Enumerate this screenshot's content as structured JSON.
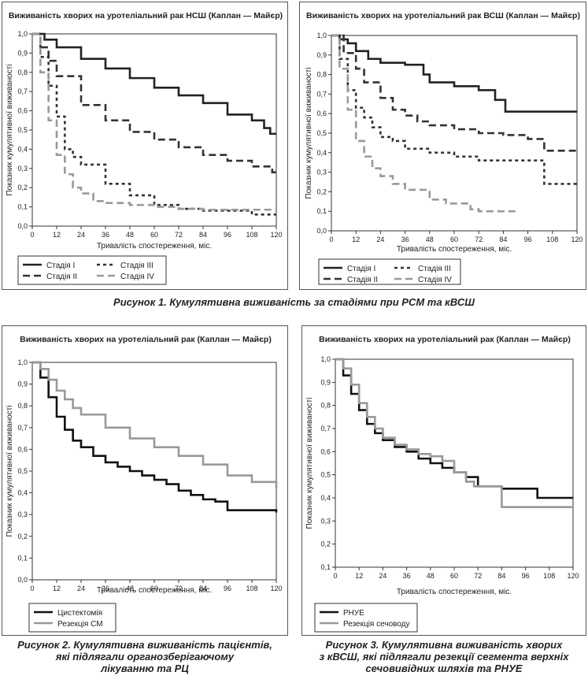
{
  "captions": {
    "fig1": "Рисунок 1. Кумулятивна виживаність за стадіями при РСМ та кВСШ",
    "fig2_lines": [
      "Рисунок 2. Кумулятивна виживаність пацієнтів,",
      "які підлягали органозберігаючому",
      "лікуванню та РЦ"
    ],
    "fig3_lines": [
      "Рисунок 3. Кумулятивна виживаність хворих",
      "з кВСШ, які підлягали резекції сегмента верхніх",
      "сечовивідних шляхів та РНУЕ"
    ]
  },
  "chart_data": [
    {
      "id": "nssh",
      "type": "line",
      "title": "Виживаність хворих на уротеліальний рак НСШ (Каплан — Майєр)",
      "xlabel": "Тривалість спостереження, міс.",
      "ylabel": "Показник кумулятивної виживаності",
      "xlim": [
        0,
        120
      ],
      "ylim": [
        0,
        1.0
      ],
      "xticks": [
        "0",
        "12",
        "24",
        "36",
        "48",
        "60",
        "72",
        "84",
        "96",
        "108",
        "120"
      ],
      "yticks": [
        "0,0",
        "0,1",
        "0,2",
        "0,3",
        "0,4",
        "0,5",
        "0,6",
        "0,7",
        "0,8",
        "0,9",
        "1,0"
      ],
      "legend_position": "bottom-left",
      "series": [
        {
          "name": "Стадія І",
          "style": "solid",
          "color": "#222222",
          "x": [
            0,
            6,
            12,
            24,
            36,
            48,
            60,
            72,
            84,
            96,
            108,
            114,
            117,
            120
          ],
          "y": [
            1.0,
            0.97,
            0.93,
            0.87,
            0.82,
            0.77,
            0.72,
            0.68,
            0.64,
            0.58,
            0.55,
            0.51,
            0.48,
            0.48
          ]
        },
        {
          "name": "Стадія ІІ",
          "style": "dash",
          "color": "#333333",
          "x": [
            0,
            4,
            8,
            12,
            24,
            36,
            48,
            60,
            72,
            84,
            96,
            108,
            118,
            120
          ],
          "y": [
            1.0,
            0.93,
            0.86,
            0.78,
            0.63,
            0.55,
            0.49,
            0.45,
            0.41,
            0.37,
            0.34,
            0.31,
            0.28,
            0.28
          ]
        },
        {
          "name": "Стадія ІІІ",
          "style": "shortdash",
          "color": "#333333",
          "x": [
            0,
            4,
            8,
            12,
            16,
            20,
            24,
            36,
            48,
            60,
            72,
            84,
            96,
            108,
            120
          ],
          "y": [
            1.0,
            0.88,
            0.73,
            0.57,
            0.4,
            0.36,
            0.32,
            0.22,
            0.16,
            0.11,
            0.09,
            0.08,
            0.08,
            0.06,
            0.06
          ]
        },
        {
          "name": "Стадія IV",
          "style": "dash",
          "color": "#999999",
          "x": [
            0,
            4,
            8,
            12,
            16,
            20,
            24,
            30,
            36,
            48,
            60,
            72,
            84,
            96,
            108,
            120
          ],
          "y": [
            1.0,
            0.8,
            0.55,
            0.37,
            0.27,
            0.2,
            0.17,
            0.13,
            0.12,
            0.11,
            0.1,
            0.09,
            0.085,
            0.085,
            0.085,
            0.085
          ]
        }
      ]
    },
    {
      "id": "vssh",
      "type": "line",
      "title": "Виживаність хворих на уротеліальний рак ВСШ (Каплан — Майєр)",
      "xlabel": "Тривалість спостереження, міс.",
      "ylabel": "Показник кумулятивної виживаності",
      "xlim": [
        0,
        120
      ],
      "ylim": [
        0,
        1.0
      ],
      "xticks": [
        "0",
        "12",
        "24",
        "36",
        "48",
        "60",
        "72",
        "84",
        "96",
        "108",
        "120"
      ],
      "yticks": [
        "0,0",
        "0,1",
        "0,2",
        "0,3",
        "0,4",
        "0,5",
        "0,6",
        "0,7",
        "0,8",
        "0,9",
        "1,0"
      ],
      "legend_position": "bottom-left",
      "series": [
        {
          "name": "Стадія І",
          "style": "solid",
          "color": "#222222",
          "x": [
            0,
            4,
            8,
            12,
            18,
            24,
            36,
            45,
            48,
            60,
            72,
            80,
            85,
            100,
            120
          ],
          "y": [
            1.0,
            0.98,
            0.96,
            0.92,
            0.88,
            0.86,
            0.85,
            0.8,
            0.76,
            0.74,
            0.72,
            0.67,
            0.61,
            0.61,
            0.61
          ]
        },
        {
          "name": "Стадія ІІ",
          "style": "dash",
          "color": "#333333",
          "x": [
            0,
            6,
            12,
            16,
            24,
            30,
            36,
            42,
            48,
            60,
            72,
            84,
            96,
            100,
            104,
            120
          ],
          "y": [
            1.0,
            0.91,
            0.83,
            0.76,
            0.68,
            0.62,
            0.59,
            0.56,
            0.54,
            0.52,
            0.5,
            0.49,
            0.47,
            0.47,
            0.41,
            0.41
          ]
        },
        {
          "name": "Стадія ІІІ",
          "style": "shortdash",
          "color": "#333333",
          "x": [
            0,
            4,
            8,
            12,
            16,
            20,
            24,
            30,
            36,
            42,
            48,
            60,
            72,
            84,
            96,
            102,
            104,
            108,
            120
          ],
          "y": [
            1.0,
            0.88,
            0.72,
            0.63,
            0.58,
            0.53,
            0.48,
            0.46,
            0.42,
            0.42,
            0.4,
            0.38,
            0.36,
            0.36,
            0.36,
            0.36,
            0.24,
            0.24,
            0.24
          ]
        },
        {
          "name": "Стадія IV",
          "style": "dash",
          "color": "#999999",
          "x": [
            0,
            4,
            8,
            12,
            16,
            20,
            24,
            30,
            36,
            42,
            48,
            56,
            60,
            68,
            72,
            84,
            90
          ],
          "y": [
            1.0,
            0.83,
            0.62,
            0.46,
            0.38,
            0.32,
            0.28,
            0.24,
            0.21,
            0.21,
            0.16,
            0.14,
            0.14,
            0.11,
            0.1,
            0.1,
            0.1
          ]
        }
      ]
    },
    {
      "id": "organ",
      "type": "line",
      "title": "Виживаність хворих на уротеліальний рак (Каплан — Майєр)",
      "xlabel": "Тривалість спостереження, міс.",
      "ylabel": "Показник кумулятивної виживаності",
      "xlim": [
        0,
        120
      ],
      "ylim": [
        0,
        1.0
      ],
      "xticks": [
        "0",
        "12",
        "24",
        "36",
        "48",
        "60",
        "72",
        "84",
        "96",
        "108",
        "120"
      ],
      "yticks": [
        "0,0",
        "0,1",
        "0,2",
        "0,3",
        "0,4",
        "0,5",
        "0,6",
        "0,7",
        "0,8",
        "0,9",
        "1,0"
      ],
      "legend_position": "bottom-left",
      "series": [
        {
          "name": "Цистектомія",
          "style": "solid",
          "color": "#111111",
          "x": [
            0,
            4,
            8,
            12,
            16,
            20,
            24,
            30,
            36,
            42,
            48,
            54,
            60,
            66,
            72,
            78,
            84,
            90,
            96,
            108,
            120
          ],
          "y": [
            1.0,
            0.93,
            0.84,
            0.75,
            0.69,
            0.64,
            0.61,
            0.57,
            0.54,
            0.52,
            0.5,
            0.48,
            0.46,
            0.44,
            0.41,
            0.39,
            0.37,
            0.36,
            0.32,
            0.32,
            0.31
          ]
        },
        {
          "name": "Резекція СМ",
          "style": "solid",
          "color": "#999999",
          "x": [
            0,
            4,
            8,
            12,
            16,
            20,
            24,
            36,
            48,
            60,
            72,
            84,
            96,
            108,
            120
          ],
          "y": [
            1.0,
            0.97,
            0.92,
            0.87,
            0.83,
            0.79,
            0.76,
            0.7,
            0.65,
            0.61,
            0.57,
            0.53,
            0.48,
            0.45,
            0.42
          ]
        }
      ]
    },
    {
      "id": "ruhue",
      "type": "line",
      "title": "Виживаність хворих на уротеліальний рак (Каплан — Майєр)",
      "xlabel": "Тривалість спостереження, міс.",
      "ylabel": "Показник кумулятивної виживаності",
      "xlim": [
        0,
        120
      ],
      "ylim": [
        0.1,
        1.0
      ],
      "yticks_start": 0.1,
      "xticks": [
        "0",
        "12",
        "24",
        "36",
        "48",
        "60",
        "72",
        "84",
        "96",
        "108",
        "120"
      ],
      "yticks": [
        "0,1",
        "0,2",
        "0,3",
        "0,4",
        "0,5",
        "0,6",
        "0,7",
        "0,8",
        "0,9",
        "1,0"
      ],
      "legend_position": "bottom-left",
      "series": [
        {
          "name": "РНУЕ",
          "style": "solid",
          "color": "#111111",
          "x": [
            0,
            4,
            8,
            12,
            16,
            20,
            24,
            30,
            36,
            42,
            48,
            54,
            60,
            66,
            72,
            84,
            96,
            102,
            108,
            120
          ],
          "y": [
            1.0,
            0.93,
            0.85,
            0.78,
            0.72,
            0.68,
            0.65,
            0.62,
            0.6,
            0.57,
            0.55,
            0.53,
            0.51,
            0.49,
            0.45,
            0.44,
            0.44,
            0.4,
            0.4,
            0.4
          ]
        },
        {
          "name": "Резекція сечоводу",
          "style": "solid",
          "color": "#999999",
          "x": [
            0,
            4,
            8,
            12,
            16,
            20,
            24,
            30,
            36,
            42,
            48,
            54,
            60,
            66,
            70,
            84,
            96,
            108,
            120
          ],
          "y": [
            1.0,
            0.96,
            0.89,
            0.81,
            0.75,
            0.7,
            0.66,
            0.63,
            0.61,
            0.59,
            0.58,
            0.56,
            0.51,
            0.47,
            0.45,
            0.36,
            0.36,
            0.36,
            0.36
          ]
        }
      ]
    }
  ]
}
